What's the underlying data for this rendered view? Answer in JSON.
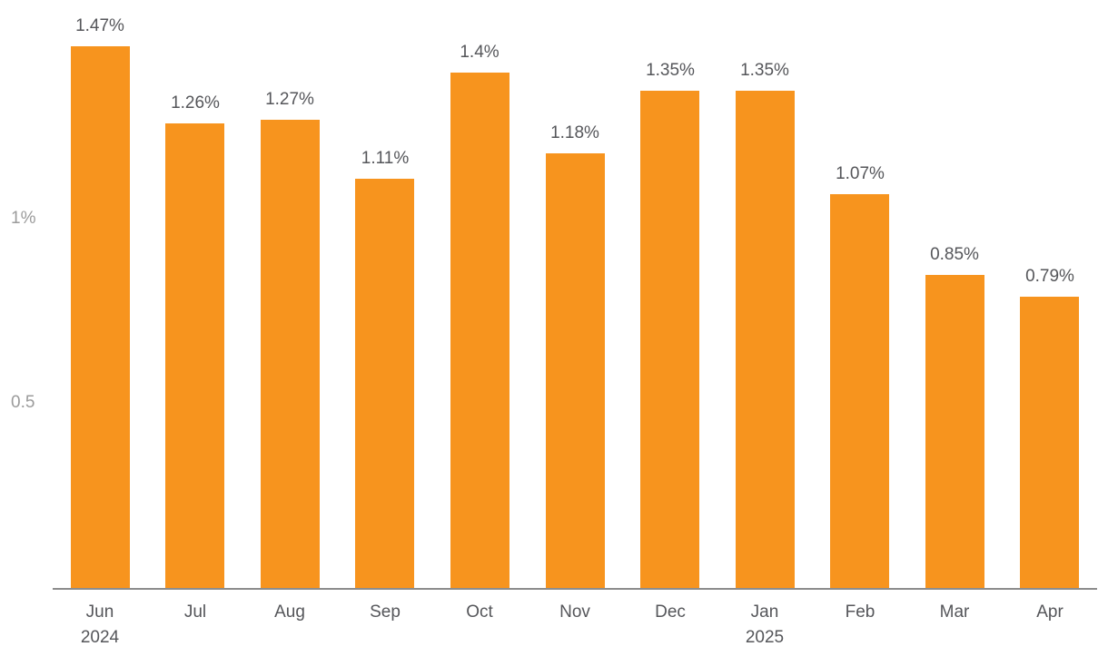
{
  "chart_data": {
    "type": "bar",
    "title": "",
    "xlabel": "",
    "ylabel": "",
    "categories": [
      "Jun\n2024",
      "Jul",
      "Aug",
      "Sep",
      "Oct",
      "Nov",
      "Dec",
      "Jan\n2025",
      "Feb",
      "Mar",
      "Apr"
    ],
    "values": [
      1.47,
      1.26,
      1.27,
      1.11,
      1.4,
      1.18,
      1.35,
      1.35,
      1.07,
      0.85,
      0.79
    ],
    "data_labels": [
      "1.47%",
      "1.26%",
      "1.27%",
      "1.11%",
      "1.4%",
      "1.18%",
      "1.35%",
      "1.35%",
      "1.07%",
      "0.85%",
      "0.79%"
    ],
    "y_ticks": [
      {
        "value": 1.0,
        "label": "1%"
      },
      {
        "value": 0.5,
        "label": "0.5"
      }
    ],
    "ylim": [
      0,
      1.55
    ],
    "grid": false,
    "legend_position": "none",
    "bar_color": "#F7941E",
    "data_label_color": "#55565A",
    "axis_tick_color": "#9B9B9B",
    "axis_line_color": "#8C8C8C"
  }
}
